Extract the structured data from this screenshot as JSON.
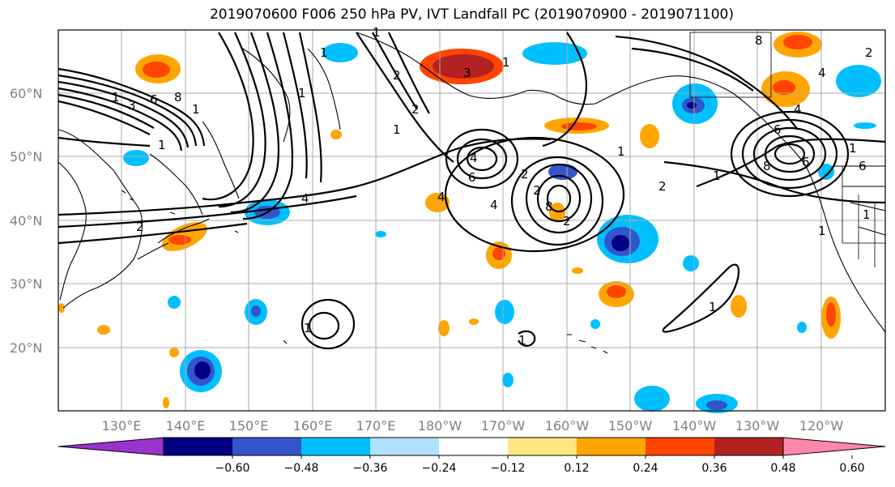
{
  "title": "2019070600 F006 250 hPa PV, IVT Landfall PC (2019070900 - 2019071100)",
  "lat_labels": [
    "60°N",
    "50°N",
    "40°N",
    "30°N",
    "20°N"
  ],
  "lon_labels": [
    "130°E",
    "140°E",
    "150°E",
    "160°E",
    "170°E",
    "180°W",
    "170°W",
    "160°W",
    "150°W",
    "140°W",
    "130°W",
    "120°W"
  ],
  "colorbar": {
    "tick_labels": [
      "−0.60",
      "−0.48",
      "−0.36",
      "−0.24",
      "−0.12",
      "0.12",
      "0.24",
      "0.36",
      "0.48",
      "0.60"
    ],
    "colors": [
      "#9933cc",
      "#000080",
      "#3355cc",
      "#00bfff",
      "#b0e2ff",
      "#ffffff",
      "#ffe680",
      "#ffa500",
      "#ff4500",
      "#b22222",
      "#ff88aa"
    ]
  },
  "contour_labels": [
    "1",
    "1",
    "2",
    "3",
    "4",
    "6",
    "8",
    "1",
    "2",
    "1",
    "4",
    "2",
    "1",
    "1",
    "1",
    "2",
    "4",
    "6",
    "2",
    "3",
    "1",
    "4",
    "6",
    "8",
    "1",
    "2",
    "4",
    "6",
    "8",
    "1",
    "1",
    "1",
    "2",
    "8",
    "4",
    "1",
    "1",
    "2",
    "1",
    "1",
    "6"
  ],
  "colors": {
    "frame": "#000000",
    "grid": "#aaaaaa",
    "contour": "#000000",
    "land": "#000000"
  }
}
